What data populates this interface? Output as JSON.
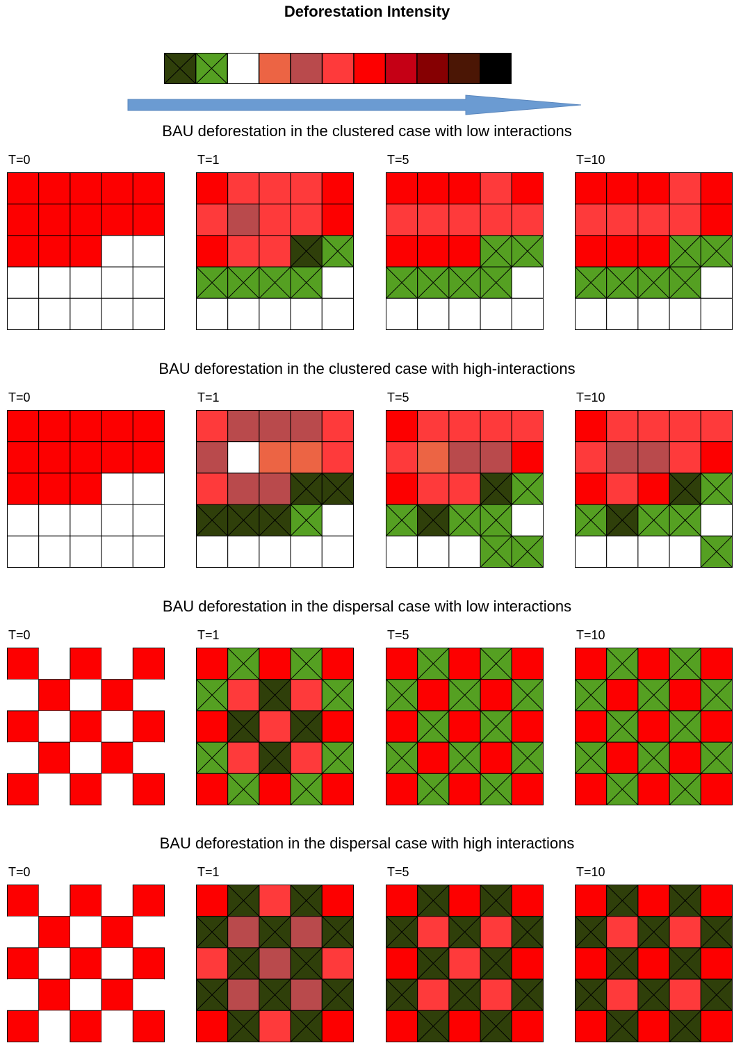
{
  "title": "Deforestation Intensity",
  "colors": {
    "dark_green": "#2f3f0a",
    "green": "#55a022",
    "white": "#ffffff",
    "orange": "#ec6444",
    "rose": "#b94a4c",
    "light_red": "#fe3a3b",
    "red": "#fd0000",
    "crimson": "#c50015",
    "maroon": "#860002",
    "brown": "#4b1605",
    "black": "#000000"
  },
  "crossed_colors": [
    "dark_green",
    "green"
  ],
  "legend": {
    "scale": [
      "dark_green",
      "green",
      "white",
      "orange",
      "rose",
      "light_red",
      "red",
      "crimson",
      "maroon",
      "brown",
      "black"
    ],
    "arrow_color": "#6b9bd2"
  },
  "sections": [
    {
      "title": "BAU deforestation in the clustered case with low interactions",
      "panels": [
        {
          "label": "T=0",
          "gridlines": true,
          "cells": [
            [
              "red",
              "red",
              "red",
              "red",
              "red"
            ],
            [
              "red",
              "red",
              "red",
              "red",
              "red"
            ],
            [
              "red",
              "red",
              "red",
              "white",
              "white"
            ],
            [
              "white",
              "white",
              "white",
              "white",
              "white"
            ],
            [
              "white",
              "white",
              "white",
              "white",
              "white"
            ]
          ]
        },
        {
          "label": "T=1",
          "gridlines": true,
          "cells": [
            [
              "red",
              "light_red",
              "light_red",
              "light_red",
              "red"
            ],
            [
              "light_red",
              "rose",
              "light_red",
              "light_red",
              "red"
            ],
            [
              "red",
              "light_red",
              "light_red",
              "dark_green",
              "green"
            ],
            [
              "green",
              "green",
              "green",
              "green",
              "white"
            ],
            [
              "white",
              "white",
              "white",
              "white",
              "white"
            ]
          ]
        },
        {
          "label": "T=5",
          "gridlines": true,
          "cells": [
            [
              "red",
              "red",
              "red",
              "light_red",
              "red"
            ],
            [
              "light_red",
              "light_red",
              "light_red",
              "light_red",
              "light_red"
            ],
            [
              "red",
              "red",
              "red",
              "green",
              "green"
            ],
            [
              "green",
              "green",
              "green",
              "green",
              "white"
            ],
            [
              "white",
              "white",
              "white",
              "white",
              "white"
            ]
          ]
        },
        {
          "label": "T=10",
          "gridlines": true,
          "cells": [
            [
              "red",
              "red",
              "red",
              "light_red",
              "red"
            ],
            [
              "light_red",
              "light_red",
              "light_red",
              "light_red",
              "red"
            ],
            [
              "red",
              "red",
              "red",
              "green",
              "green"
            ],
            [
              "green",
              "green",
              "green",
              "green",
              "white"
            ],
            [
              "white",
              "white",
              "white",
              "white",
              "white"
            ]
          ]
        }
      ]
    },
    {
      "title": "BAU deforestation in the clustered case with high-interactions",
      "panels": [
        {
          "label": "T=0",
          "gridlines": true,
          "cells": [
            [
              "red",
              "red",
              "red",
              "red",
              "red"
            ],
            [
              "red",
              "red",
              "red",
              "red",
              "red"
            ],
            [
              "red",
              "red",
              "red",
              "white",
              "white"
            ],
            [
              "white",
              "white",
              "white",
              "white",
              "white"
            ],
            [
              "white",
              "white",
              "white",
              "white",
              "white"
            ]
          ]
        },
        {
          "label": "T=1",
          "gridlines": true,
          "cells": [
            [
              "light_red",
              "rose",
              "rose",
              "rose",
              "light_red"
            ],
            [
              "rose",
              "white",
              "orange",
              "orange",
              "light_red"
            ],
            [
              "light_red",
              "rose",
              "rose",
              "dark_green",
              "dark_green"
            ],
            [
              "dark_green",
              "dark_green",
              "dark_green",
              "green",
              "white"
            ],
            [
              "white",
              "white",
              "white",
              "white",
              "white"
            ]
          ]
        },
        {
          "label": "T=5",
          "gridlines": true,
          "cells": [
            [
              "red",
              "light_red",
              "light_red",
              "light_red",
              "light_red"
            ],
            [
              "light_red",
              "orange",
              "rose",
              "rose",
              "red"
            ],
            [
              "red",
              "light_red",
              "light_red",
              "dark_green",
              "green"
            ],
            [
              "green",
              "dark_green",
              "green",
              "green",
              "white"
            ],
            [
              "white",
              "white",
              "white",
              "green",
              "green"
            ]
          ]
        },
        {
          "label": "T=10",
          "gridlines": true,
          "cells": [
            [
              "red",
              "light_red",
              "light_red",
              "light_red",
              "light_red"
            ],
            [
              "light_red",
              "rose",
              "rose",
              "light_red",
              "red"
            ],
            [
              "red",
              "light_red",
              "red",
              "dark_green",
              "green"
            ],
            [
              "green",
              "dark_green",
              "green",
              "green",
              "white"
            ],
            [
              "white",
              "white",
              "white",
              "white",
              "green"
            ]
          ]
        }
      ]
    },
    {
      "title": "BAU deforestation in the dispersal case with low interactions",
      "panels": [
        {
          "label": "T=0",
          "gridlines": false,
          "cells": [
            [
              "red",
              "white",
              "red",
              "white",
              "red"
            ],
            [
              "white",
              "red",
              "white",
              "red",
              "white"
            ],
            [
              "red",
              "white",
              "red",
              "white",
              "red"
            ],
            [
              "white",
              "red",
              "white",
              "red",
              "white"
            ],
            [
              "red",
              "white",
              "red",
              "white",
              "red"
            ]
          ]
        },
        {
          "label": "T=1",
          "gridlines": true,
          "cells": [
            [
              "red",
              "green",
              "red",
              "green",
              "red"
            ],
            [
              "green",
              "light_red",
              "dark_green",
              "light_red",
              "green"
            ],
            [
              "red",
              "dark_green",
              "light_red",
              "dark_green",
              "red"
            ],
            [
              "green",
              "light_red",
              "dark_green",
              "light_red",
              "green"
            ],
            [
              "red",
              "green",
              "red",
              "green",
              "red"
            ]
          ]
        },
        {
          "label": "T=5",
          "gridlines": true,
          "cells": [
            [
              "red",
              "green",
              "red",
              "green",
              "red"
            ],
            [
              "green",
              "red",
              "green",
              "red",
              "green"
            ],
            [
              "red",
              "green",
              "red",
              "green",
              "red"
            ],
            [
              "green",
              "red",
              "green",
              "red",
              "green"
            ],
            [
              "red",
              "green",
              "red",
              "green",
              "red"
            ]
          ]
        },
        {
          "label": "T=10",
          "gridlines": true,
          "cells": [
            [
              "red",
              "green",
              "red",
              "green",
              "red"
            ],
            [
              "green",
              "red",
              "green",
              "red",
              "green"
            ],
            [
              "red",
              "green",
              "red",
              "green",
              "red"
            ],
            [
              "green",
              "red",
              "green",
              "red",
              "green"
            ],
            [
              "red",
              "green",
              "red",
              "green",
              "red"
            ]
          ]
        }
      ]
    },
    {
      "title": "BAU deforestation in the dispersal case with high interactions",
      "panels": [
        {
          "label": "T=0",
          "gridlines": false,
          "cells": [
            [
              "red",
              "white",
              "red",
              "white",
              "red"
            ],
            [
              "white",
              "red",
              "white",
              "red",
              "white"
            ],
            [
              "red",
              "white",
              "red",
              "white",
              "red"
            ],
            [
              "white",
              "red",
              "white",
              "red",
              "white"
            ],
            [
              "red",
              "white",
              "red",
              "white",
              "red"
            ]
          ]
        },
        {
          "label": "T=1",
          "gridlines": true,
          "cells": [
            [
              "red",
              "dark_green",
              "light_red",
              "dark_green",
              "red"
            ],
            [
              "dark_green",
              "rose",
              "dark_green",
              "rose",
              "dark_green"
            ],
            [
              "light_red",
              "dark_green",
              "rose",
              "dark_green",
              "light_red"
            ],
            [
              "dark_green",
              "rose",
              "dark_green",
              "rose",
              "dark_green"
            ],
            [
              "red",
              "dark_green",
              "light_red",
              "dark_green",
              "red"
            ]
          ]
        },
        {
          "label": "T=5",
          "gridlines": true,
          "cells": [
            [
              "red",
              "dark_green",
              "red",
              "dark_green",
              "red"
            ],
            [
              "dark_green",
              "light_red",
              "dark_green",
              "light_red",
              "dark_green"
            ],
            [
              "red",
              "dark_green",
              "light_red",
              "dark_green",
              "red"
            ],
            [
              "dark_green",
              "light_red",
              "dark_green",
              "light_red",
              "dark_green"
            ],
            [
              "red",
              "dark_green",
              "red",
              "dark_green",
              "red"
            ]
          ]
        },
        {
          "label": "T=10",
          "gridlines": true,
          "cells": [
            [
              "red",
              "dark_green",
              "red",
              "dark_green",
              "red"
            ],
            [
              "dark_green",
              "light_red",
              "dark_green",
              "light_red",
              "dark_green"
            ],
            [
              "red",
              "dark_green",
              "red",
              "dark_green",
              "red"
            ],
            [
              "dark_green",
              "light_red",
              "dark_green",
              "light_red",
              "dark_green"
            ],
            [
              "red",
              "dark_green",
              "red",
              "dark_green",
              "red"
            ]
          ]
        }
      ]
    }
  ]
}
